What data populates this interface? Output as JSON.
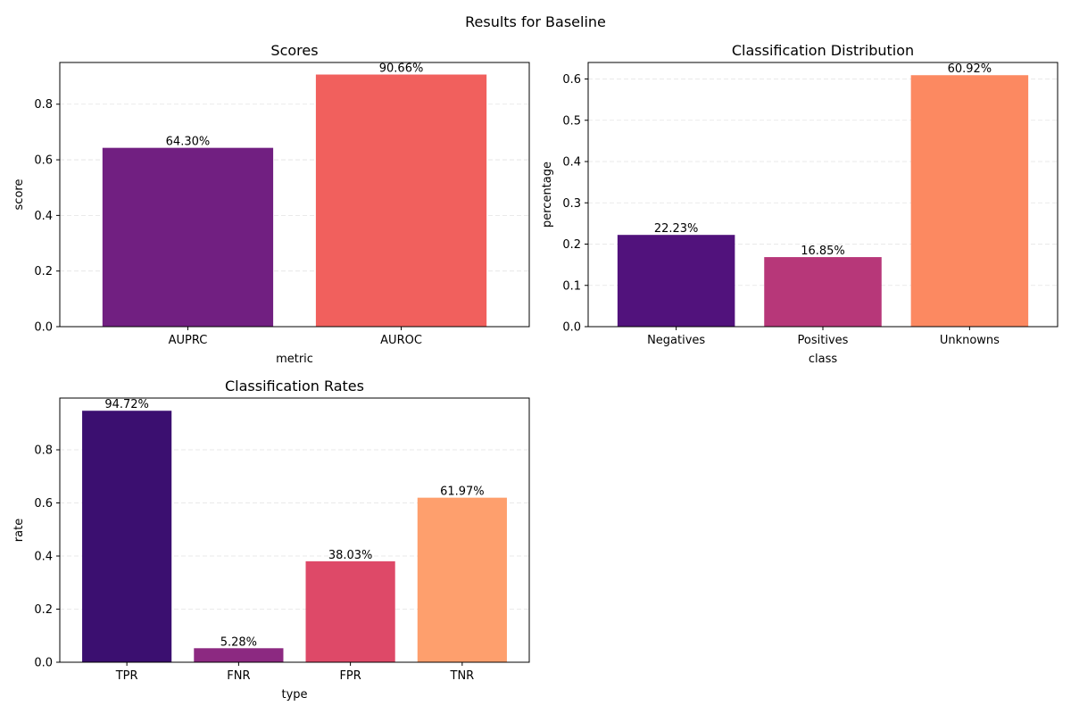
{
  "figure": {
    "title": "Results for Baseline"
  },
  "chart_data": [
    {
      "type": "bar",
      "title": "Scores",
      "xlabel": "metric",
      "ylabel": "score",
      "categories": [
        "AUPRC",
        "AUROC"
      ],
      "values": [
        0.643,
        0.9066
      ],
      "value_labels": [
        "64.30%",
        "90.66%"
      ],
      "colors": [
        "#711F81",
        "#F1605D"
      ],
      "ylim": [
        0,
        0.95
      ],
      "yticks": [
        0.0,
        0.2,
        0.4,
        0.6,
        0.8
      ],
      "ytick_labels": [
        "0.0",
        "0.2",
        "0.4",
        "0.6",
        "0.8"
      ],
      "grid": "horizontal dashed"
    },
    {
      "type": "bar",
      "title": "Classification Distribution",
      "xlabel": "class",
      "ylabel": "percentage",
      "categories": [
        "Negatives",
        "Positives",
        "Unknowns"
      ],
      "values": [
        0.2223,
        0.1685,
        0.6092
      ],
      "value_labels": [
        "22.23%",
        "16.85%",
        "60.92%"
      ],
      "colors": [
        "#51127C",
        "#B73779",
        "#FC8961"
      ],
      "ylim": [
        0,
        0.64
      ],
      "yticks": [
        0.0,
        0.1,
        0.2,
        0.3,
        0.4,
        0.5,
        0.6
      ],
      "ytick_labels": [
        "0.0",
        "0.1",
        "0.2",
        "0.3",
        "0.4",
        "0.5",
        "0.6"
      ],
      "grid": "horizontal dashed"
    },
    {
      "type": "bar",
      "title": "Classification Rates",
      "xlabel": "type",
      "ylabel": "rate",
      "categories": [
        "TPR",
        "FNR",
        "FPR",
        "TNR"
      ],
      "values": [
        0.9472,
        0.0528,
        0.3803,
        0.6197
      ],
      "value_labels": [
        "94.72%",
        "5.28%",
        "38.03%",
        "61.97%"
      ],
      "colors": [
        "#3B0F70",
        "#8C2981",
        "#DE4968",
        "#FE9F6D"
      ],
      "ylim": [
        0,
        0.995
      ],
      "yticks": [
        0.0,
        0.2,
        0.4,
        0.6,
        0.8
      ],
      "ytick_labels": [
        "0.0",
        "0.2",
        "0.4",
        "0.6",
        "0.8"
      ],
      "grid": "horizontal dashed"
    }
  ]
}
